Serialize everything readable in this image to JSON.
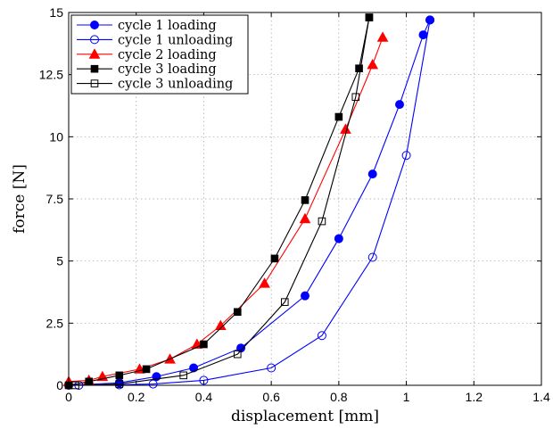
{
  "chart_data": {
    "type": "line",
    "title": "",
    "xlabel": "displacement [mm]",
    "ylabel": "force [N]",
    "xlim": [
      0,
      1.4
    ],
    "ylim": [
      0,
      15
    ],
    "xticks": [
      0,
      0.2,
      0.4,
      0.6,
      0.8,
      1,
      1.2,
      1.4
    ],
    "xtick_labels": [
      "0",
      "0.2",
      "0.4",
      "0.6",
      "0.8",
      "1",
      "1.2",
      "1.4"
    ],
    "yticks": [
      0,
      2.5,
      5,
      7.5,
      10,
      12.5,
      15
    ],
    "ytick_labels": [
      "0",
      "2.5",
      "5",
      "7.5",
      "10",
      "12.5",
      "15"
    ],
    "grid": true,
    "legend_position": "top-left",
    "series": [
      {
        "name": "cycle 1 loading",
        "color": "#0000ff",
        "marker": "filled-circle",
        "x": [
          0,
          0.15,
          0.26,
          0.37,
          0.51,
          0.7,
          0.8,
          0.9,
          0.98,
          1.05,
          1.07
        ],
        "y": [
          0,
          0.1,
          0.35,
          0.7,
          1.5,
          3.6,
          5.9,
          8.5,
          11.3,
          14.1,
          14.7
        ]
      },
      {
        "name": "cycle 1 unloading",
        "color": "#0000ff",
        "marker": "open-circle",
        "x": [
          1.07,
          1.0,
          0.9,
          0.75,
          0.6,
          0.4,
          0.25,
          0.15,
          0.03
        ],
        "y": [
          14.7,
          9.25,
          5.15,
          2.0,
          0.7,
          0.2,
          0.05,
          0.02,
          0
        ]
      },
      {
        "name": "cycle 2 loading",
        "color": "#ff0000",
        "marker": "filled-triangle",
        "x": [
          0,
          0.06,
          0.1,
          0.21,
          0.3,
          0.38,
          0.45,
          0.58,
          0.7,
          0.82,
          0.9,
          0.93
        ],
        "y": [
          0.15,
          0.2,
          0.35,
          0.65,
          1.05,
          1.65,
          2.4,
          4.1,
          6.7,
          10.3,
          12.9,
          14.0
        ]
      },
      {
        "name": "cycle 3 loading",
        "color": "#000000",
        "marker": "filled-square",
        "x": [
          0,
          0.06,
          0.15,
          0.23,
          0.4,
          0.5,
          0.61,
          0.7,
          0.8,
          0.86,
          0.89
        ],
        "y": [
          0,
          0.15,
          0.4,
          0.65,
          1.65,
          2.95,
          5.1,
          7.45,
          10.8,
          12.75,
          14.8
        ]
      },
      {
        "name": "cycle 3 unloading",
        "color": "#000000",
        "marker": "open-square",
        "x": [
          0.89,
          0.85,
          0.75,
          0.64,
          0.5,
          0.34,
          0.15,
          0.02
        ],
        "y": [
          14.8,
          11.6,
          6.6,
          3.35,
          1.25,
          0.4,
          0.05,
          0
        ]
      }
    ]
  }
}
